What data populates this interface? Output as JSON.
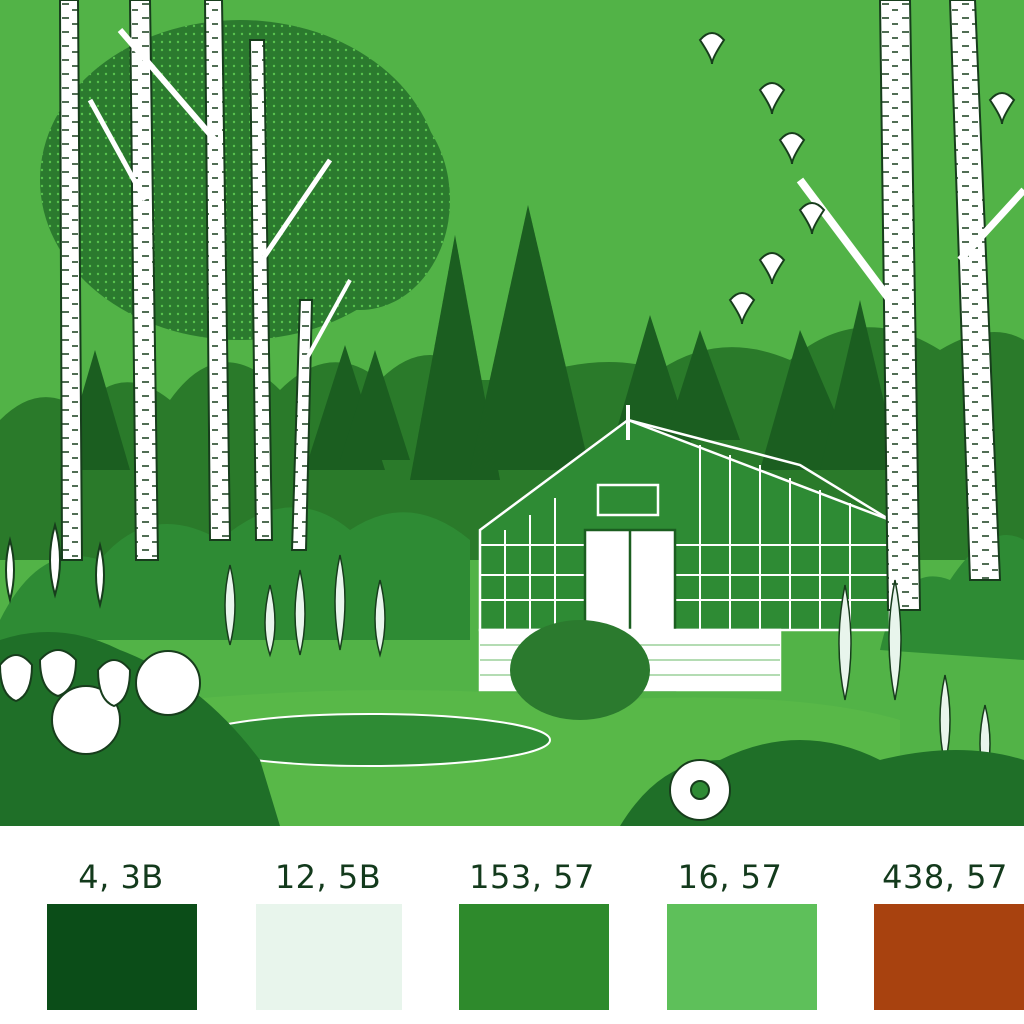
{
  "illustration": {
    "subject": "garden-greenhouse-scene",
    "colors": {
      "sky": "#52b347",
      "dark": "#1b5e20",
      "mid": "#2e8b34",
      "light": "#4caf50",
      "ground": "#58b848",
      "trunk": "#ffffff",
      "ink": "#0d2b12"
    }
  },
  "palette": {
    "swatches": [
      {
        "label": "4, 3B",
        "color": "#0b4d18"
      },
      {
        "label": "12, 5B",
        "color": "#e8f5ec"
      },
      {
        "label": "153, 57",
        "color": "#2e8a2c"
      },
      {
        "label": "16, 57",
        "color": "#5ec05a"
      },
      {
        "label": "438, 57",
        "color": "#a8420f"
      }
    ]
  }
}
